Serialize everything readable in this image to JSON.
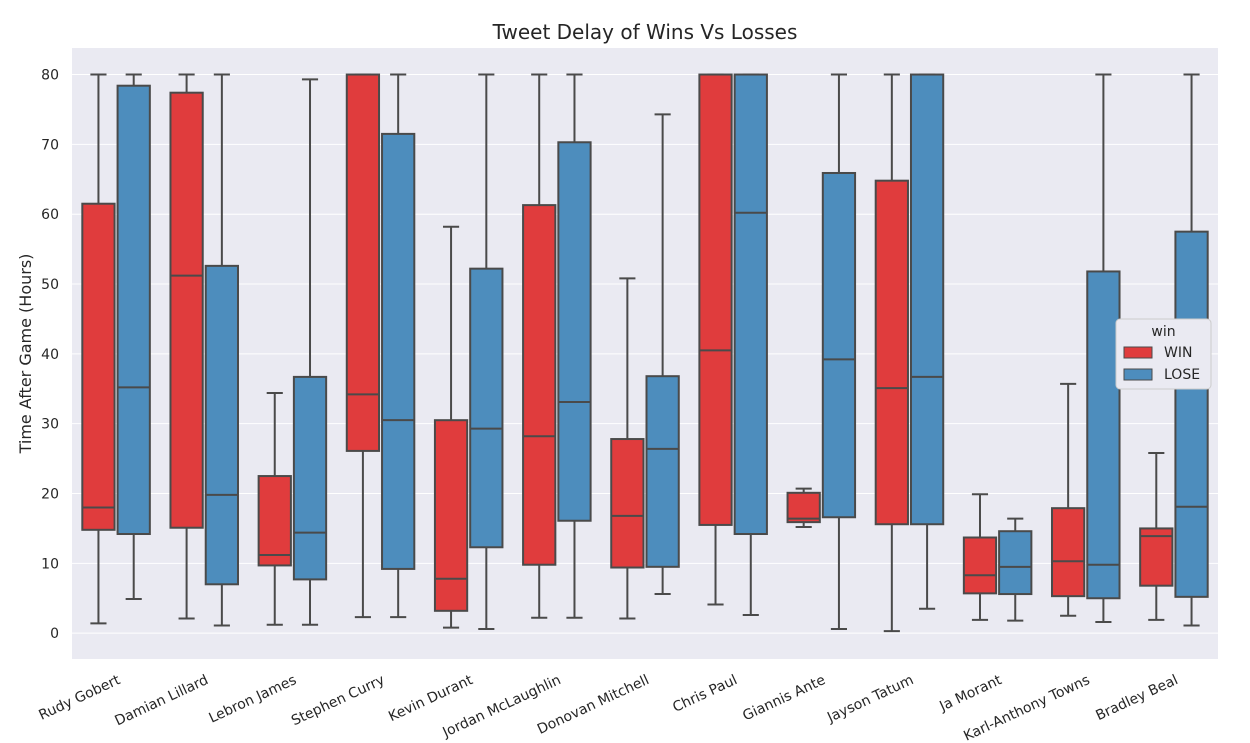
{
  "chart_data": {
    "type": "box",
    "title": "Tweet Delay of Wins Vs Losses",
    "xlabel": "",
    "ylabel": "Time After Game (Hours)",
    "ylim": [
      -3.7,
      83.8
    ],
    "yticks": [
      0,
      10,
      20,
      30,
      40,
      50,
      60,
      70,
      80
    ],
    "grid": true,
    "legend": {
      "title": "win",
      "placement": "center-right"
    },
    "categories": [
      "Rudy Gobert",
      "Damian Lillard",
      "Lebron James",
      "Stephen Curry",
      "Kevin Durant",
      "Jordan McLaughlin",
      "Donovan Mitchell",
      "Chris Paul",
      "Giannis Ante",
      "Jayson Tatum",
      "Ja Morant",
      "Karl-Anthony Towns",
      "Bradley Beal"
    ],
    "series": [
      {
        "name": "WIN",
        "color": "#e03c3d",
        "boxes": [
          {
            "whislo": 1.4,
            "q1": 14.8,
            "med": 18.0,
            "q3": 61.5,
            "whishi": 80
          },
          {
            "whislo": 2.1,
            "q1": 15.1,
            "med": 51.2,
            "q3": 77.4,
            "whishi": 80
          },
          {
            "whislo": 1.2,
            "q1": 9.7,
            "med": 11.2,
            "q3": 22.5,
            "whishi": 34.4
          },
          {
            "whislo": 2.3,
            "q1": 26.1,
            "med": 34.2,
            "q3": 80,
            "whishi": 80
          },
          {
            "whislo": 0.8,
            "q1": 3.2,
            "med": 7.8,
            "q3": 30.5,
            "whishi": 58.2
          },
          {
            "whislo": 2.2,
            "q1": 9.8,
            "med": 28.2,
            "q3": 61.3,
            "whishi": 80
          },
          {
            "whislo": 2.1,
            "q1": 9.4,
            "med": 16.8,
            "q3": 27.8,
            "whishi": 50.8
          },
          {
            "whislo": 4.1,
            "q1": 15.5,
            "med": 40.5,
            "q3": 80,
            "whishi": 80
          },
          {
            "whislo": 15.2,
            "q1": 15.9,
            "med": 16.4,
            "q3": 20.1,
            "whishi": 20.7
          },
          {
            "whislo": 0.3,
            "q1": 15.6,
            "med": 35.1,
            "q3": 64.8,
            "whishi": 80
          },
          {
            "whislo": 1.9,
            "q1": 5.7,
            "med": 8.3,
            "q3": 13.7,
            "whishi": 19.9
          },
          {
            "whislo": 2.5,
            "q1": 5.3,
            "med": 10.3,
            "q3": 17.9,
            "whishi": 35.7
          },
          {
            "whislo": 1.9,
            "q1": 6.8,
            "med": 13.9,
            "q3": 15.0,
            "whishi": 25.8
          }
        ]
      },
      {
        "name": "LOSE",
        "color": "#4d8dbd",
        "boxes": [
          {
            "whislo": 4.9,
            "q1": 14.2,
            "med": 35.2,
            "q3": 78.4,
            "whishi": 80
          },
          {
            "whislo": 1.1,
            "q1": 7.0,
            "med": 19.8,
            "q3": 52.6,
            "whishi": 80
          },
          {
            "whislo": 1.2,
            "q1": 7.7,
            "med": 14.4,
            "q3": 36.7,
            "whishi": 79.3
          },
          {
            "whislo": 2.3,
            "q1": 9.2,
            "med": 30.5,
            "q3": 71.5,
            "whishi": 80
          },
          {
            "whislo": 0.6,
            "q1": 12.3,
            "med": 29.3,
            "q3": 52.2,
            "whishi": 80
          },
          {
            "whislo": 2.2,
            "q1": 16.1,
            "med": 33.1,
            "q3": 70.3,
            "whishi": 80
          },
          {
            "whislo": 5.6,
            "q1": 9.5,
            "med": 26.4,
            "q3": 36.8,
            "whishi": 74.3
          },
          {
            "whislo": 2.6,
            "q1": 14.2,
            "med": 60.2,
            "q3": 80,
            "whishi": 80
          },
          {
            "whislo": 0.6,
            "q1": 16.6,
            "med": 39.2,
            "q3": 65.9,
            "whishi": 80
          },
          {
            "whislo": 3.5,
            "q1": 15.6,
            "med": 36.7,
            "q3": 80,
            "whishi": 80
          },
          {
            "whislo": 1.8,
            "q1": 5.6,
            "med": 9.5,
            "q3": 14.6,
            "whishi": 16.4
          },
          {
            "whislo": 1.6,
            "q1": 5.0,
            "med": 9.8,
            "q3": 51.8,
            "whishi": 80
          },
          {
            "whislo": 1.1,
            "q1": 5.2,
            "med": 18.1,
            "q3": 57.5,
            "whishi": 80
          }
        ]
      }
    ],
    "colors": {
      "plot_background": "#eaeaf2",
      "grid": "#ffffff",
      "line": "#4a4a4a"
    }
  }
}
